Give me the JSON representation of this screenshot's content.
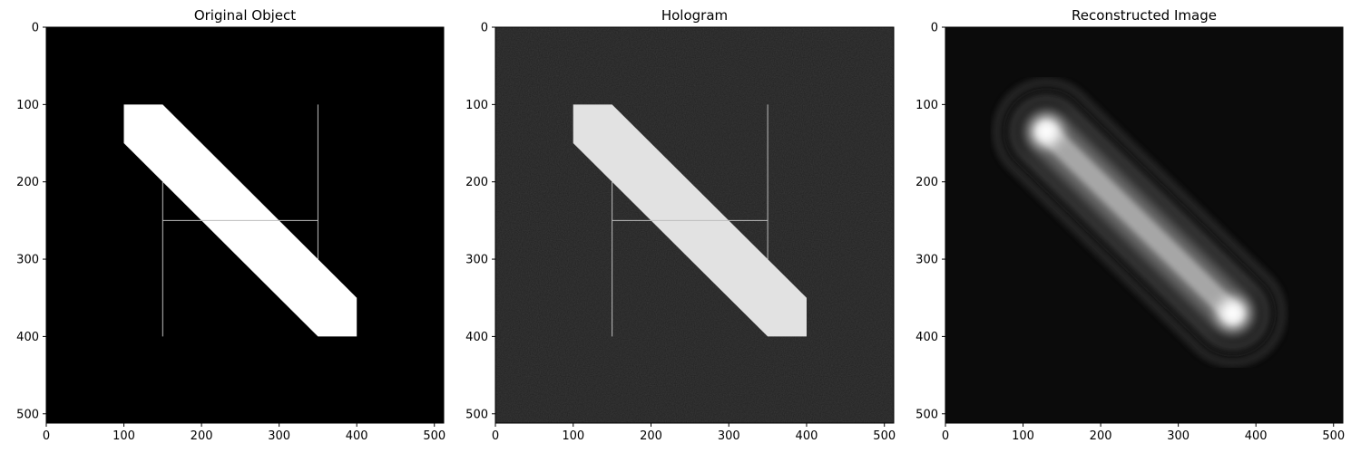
{
  "chart_data": [
    {
      "type": "image",
      "title": "Original Object",
      "image_size": [
        512,
        512
      ],
      "xlim": [
        0,
        512
      ],
      "ylim": [
        512,
        0
      ],
      "xticks": [
        0,
        100,
        200,
        300,
        400,
        500
      ],
      "yticks": [
        0,
        100,
        200,
        300,
        400,
        500
      ],
      "background": "#000000",
      "colormap": "gray",
      "content": {
        "band_polygon": [
          [
            100,
            100
          ],
          [
            150,
            100
          ],
          [
            400,
            350
          ],
          [
            400,
            400
          ],
          [
            350,
            400
          ],
          [
            100,
            150
          ]
        ],
        "band_color": "#ffffff",
        "lines": [
          {
            "x1": 150,
            "y1": 200,
            "x2": 150,
            "y2": 400
          },
          {
            "x1": 350,
            "y1": 100,
            "x2": 350,
            "y2": 300
          },
          {
            "x1": 150,
            "y1": 250,
            "x2": 350,
            "y2": 250
          }
        ],
        "line_color": "#bdbdbd"
      }
    },
    {
      "type": "image",
      "title": "Hologram",
      "image_size": [
        512,
        512
      ],
      "xlim": [
        0,
        512
      ],
      "ylim": [
        512,
        0
      ],
      "xticks": [
        0,
        100,
        200,
        300,
        400,
        500
      ],
      "yticks": [
        0,
        100,
        200,
        300,
        400,
        500
      ],
      "background": "#202020",
      "colormap": "gray",
      "noise": true,
      "content": {
        "band_polygon": [
          [
            100,
            100
          ],
          [
            150,
            100
          ],
          [
            400,
            350
          ],
          [
            400,
            400
          ],
          [
            350,
            400
          ],
          [
            100,
            150
          ]
        ],
        "band_color": "#e2e2e2",
        "lines": [
          {
            "x1": 150,
            "y1": 200,
            "x2": 150,
            "y2": 400
          },
          {
            "x1": 350,
            "y1": 100,
            "x2": 350,
            "y2": 300
          },
          {
            "x1": 150,
            "y1": 250,
            "x2": 350,
            "y2": 250
          }
        ],
        "line_color": "#bdbdbd"
      }
    },
    {
      "type": "image",
      "title": "Reconstructed Image",
      "image_size": [
        512,
        512
      ],
      "xlim": [
        0,
        512
      ],
      "ylim": [
        512,
        0
      ],
      "xticks": [
        0,
        100,
        200,
        300,
        400,
        500
      ],
      "yticks": [
        0,
        100,
        200,
        300,
        400,
        500
      ],
      "background": "#0b0b0b",
      "colormap": "gray",
      "content": {
        "blur_band": {
          "x1": 130,
          "y1": 135,
          "x2": 370,
          "y2": 370
        },
        "bright_spots": [
          [
            130,
            135
          ],
          [
            370,
            370
          ]
        ]
      }
    }
  ]
}
